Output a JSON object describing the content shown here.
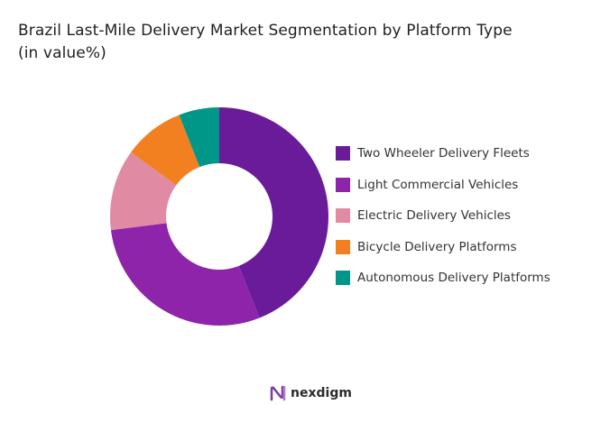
{
  "title": {
    "line1": "Brazil Last-Mile Delivery Market Segmentation by Platform Type",
    "line2": "(in value%)"
  },
  "chart_data": {
    "type": "pie",
    "variant": "donut",
    "title": "Brazil Last-Mile Delivery Market Segmentation by Platform Type (in value%)",
    "legend_position": "right",
    "series": [
      {
        "name": "Two Wheeler Delivery Fleets",
        "value": 44,
        "color": "#6a1b9a"
      },
      {
        "name": "Light Commercial Vehicles",
        "value": 29,
        "color": "#8e24aa"
      },
      {
        "name": "Electric Delivery Vehicles",
        "value": 12,
        "color": "#e08aa3"
      },
      {
        "name": "Bicycle Delivery Platforms",
        "value": 9,
        "color": "#f28021"
      },
      {
        "name": "Autonomous Delivery Platforms",
        "value": 6,
        "color": "#009688"
      }
    ]
  },
  "logo": {
    "text": "nexdigm",
    "icon": "nexdigm-logo-icon",
    "color": "#7b3fa0"
  }
}
